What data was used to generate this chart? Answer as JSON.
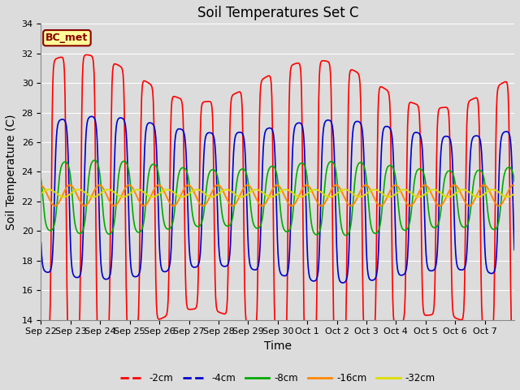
{
  "title": "Soil Temperatures Set C",
  "xlabel": "Time",
  "ylabel": "Soil Temperature (C)",
  "ylim": [
    14,
    34
  ],
  "yticks": [
    14,
    16,
    18,
    20,
    22,
    24,
    26,
    28,
    30,
    32,
    34
  ],
  "background_color": "#dcdcdc",
  "line_colors": {
    "-2cm": "#ff0000",
    "-4cm": "#0000cc",
    "-8cm": "#00aa00",
    "-16cm": "#ff8800",
    "-32cm": "#dddd00"
  },
  "legend_label": "BC_met",
  "legend_bg": "#ffff99",
  "legend_border": "#8b0000",
  "x_labels": [
    "Sep 22",
    "Sep 23",
    "Sep 24",
    "Sep 25",
    "Sep 26",
    "Sep 27",
    "Sep 28",
    "Sep 29",
    "Sep 30",
    "Oct 1",
    "Oct 2",
    "Oct 3",
    "Oct 4",
    "Oct 5",
    "Oct 6",
    "Oct 7"
  ],
  "num_days": 16,
  "ppd": 48,
  "title_fontsize": 12,
  "axis_label_fontsize": 10,
  "tick_fontsize": 8,
  "line_width": 1.2
}
